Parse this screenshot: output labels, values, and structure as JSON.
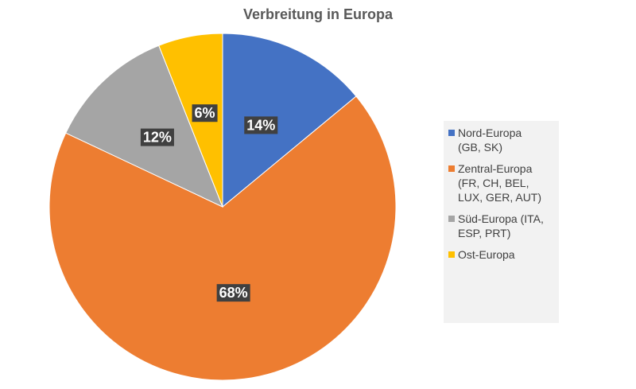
{
  "chart_data": {
    "type": "pie",
    "title": "Verbreitung in Europa",
    "categories": [
      "Nord-Europa\n(GB, SK)",
      "Zentral-Europa\n(FR, CH, BEL,\nLUX, GER, AUT)",
      "Süd-Europa (ITA,\nESP, PRT)",
      "Ost-Europa"
    ],
    "values": [
      14,
      68,
      12,
      6
    ],
    "data_labels": [
      "14%",
      "68%",
      "12%",
      "6%"
    ],
    "colors": [
      "#4472c4",
      "#ed7d31",
      "#a5a5a5",
      "#ffc000"
    ],
    "legend_position": "right"
  }
}
